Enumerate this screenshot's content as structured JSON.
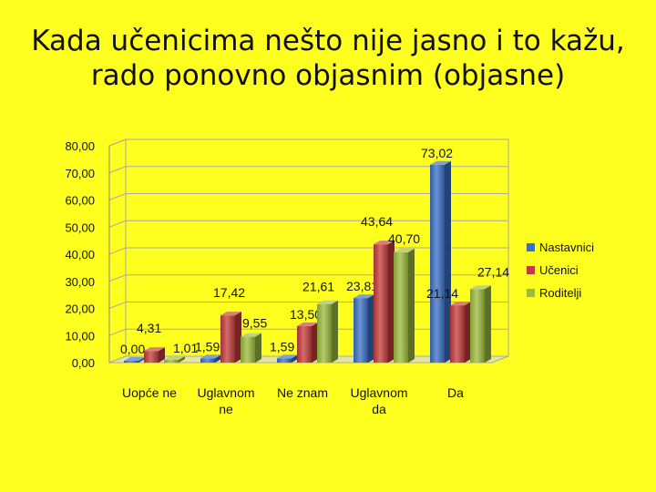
{
  "title_lines": [
    "Kada učenicima nešto nije jasno i to kažu,",
    "rado ponovno objasnim (objasne)"
  ],
  "chart_data": {
    "type": "bar",
    "title": "Kada učenicima nešto nije jasno i to kažu, rado ponovno objasnim (objasne)",
    "categories": [
      [
        "Uopće ne"
      ],
      [
        "Uglavnom",
        "ne"
      ],
      [
        "Ne znam"
      ],
      [
        "Uglavnom",
        "da"
      ],
      [
        "Da"
      ]
    ],
    "series": [
      {
        "name": "Nastavnici",
        "color": "#3a6fc4",
        "values": [
          0.0,
          1.59,
          1.59,
          23.81,
          73.02
        ]
      },
      {
        "name": "Učenici",
        "color": "#c43a3a",
        "values": [
          4.31,
          17.42,
          13.5,
          43.64,
          21.14
        ]
      },
      {
        "name": "Roditelji",
        "color": "#9bbb3b",
        "values": [
          1.01,
          9.55,
          21.61,
          40.7,
          27.14
        ]
      }
    ],
    "data_labels": [
      [
        "0,00",
        "1,59",
        "1,59",
        "23,81",
        "73,02"
      ],
      [
        "4,31",
        "17,42",
        "13,50",
        "43,64",
        "21,14"
      ],
      [
        "1,01",
        "9,55",
        "21,61",
        "40,70",
        "27,14"
      ]
    ],
    "ylim": [
      0,
      80
    ],
    "yticks": [
      "0,00",
      "10,00",
      "20,00",
      "30,00",
      "40,00",
      "50,00",
      "60,00",
      "70,00",
      "80,00"
    ],
    "xlabel": "",
    "ylabel": "",
    "grid": true,
    "legend_position": "right"
  }
}
